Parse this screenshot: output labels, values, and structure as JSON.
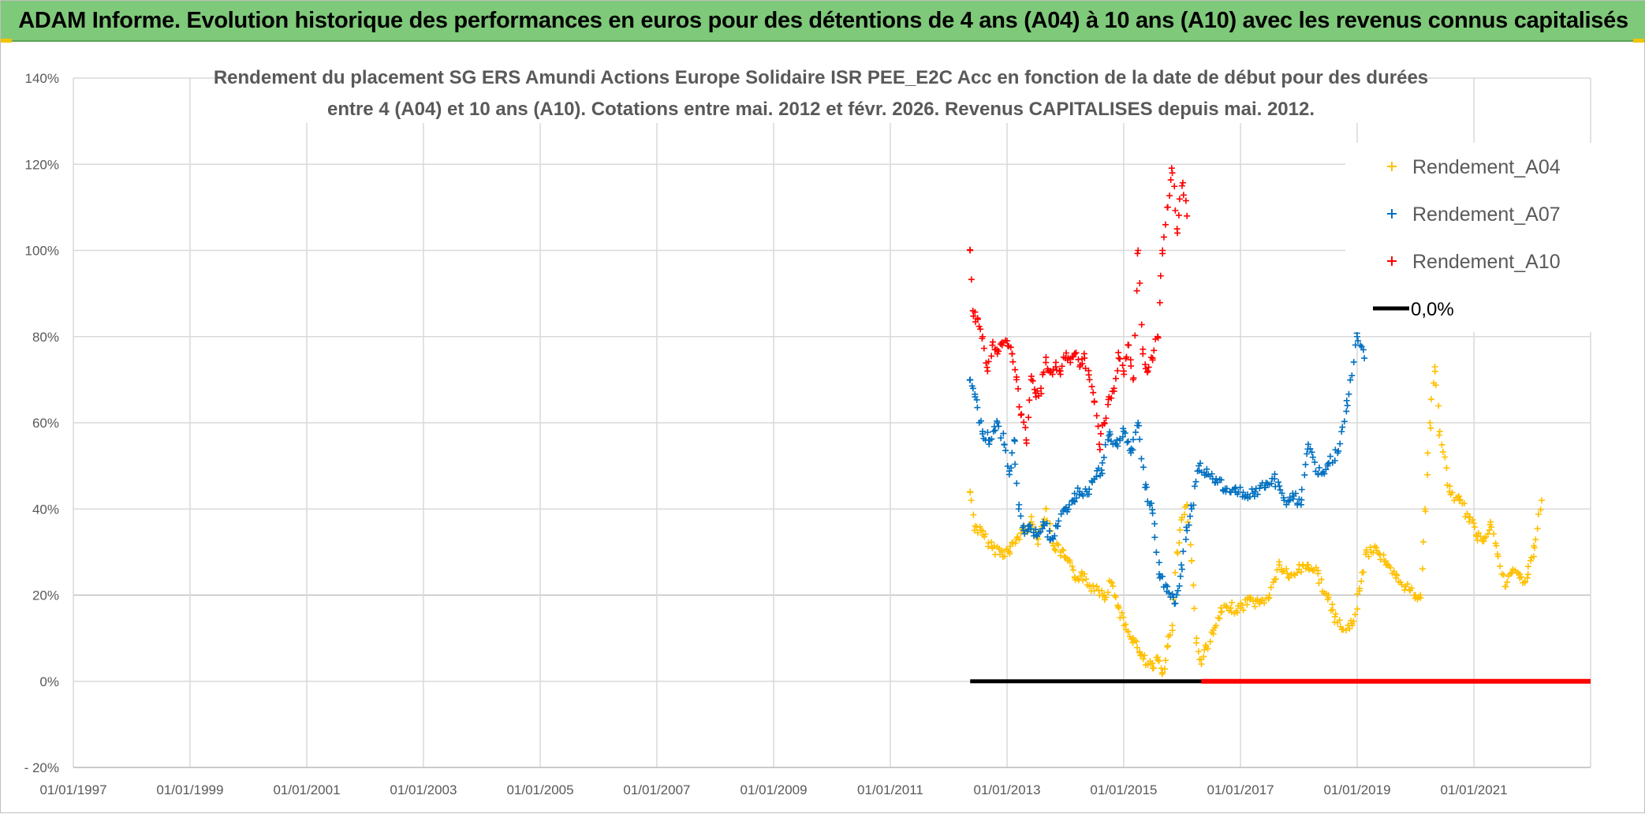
{
  "banner_title": "ADAM Informe. Evolution historique des performances en euros pour des détentions de 4 ans (A04) à 10 ans (A10) avec les revenus connus capitalisés",
  "colors": {
    "banner": "#7fc97a",
    "A04": "#ffc000",
    "A07": "#0070c0",
    "A10": "#ff0000",
    "zero": "#000000"
  },
  "chart_data": {
    "type": "scatter",
    "title_line1": "Rendement du placement SG ERS Amundi Actions Europe Solidaire ISR PEE_E2C Acc en fonction de la date de début pour des durées",
    "title_line2": "entre 4 (A04) et 10 ans (A10). Cotations entre mai. 2012 et févr. 2026. Revenus CAPITALISES depuis mai. 2012.",
    "xlim": [
      "1997-01-01",
      "2023-01-01"
    ],
    "ylim": [
      -20,
      140
    ],
    "x_tick_labels": [
      "01/01/1997",
      "01/01/1999",
      "01/01/2001",
      "01/01/2003",
      "01/01/2005",
      "01/01/2007",
      "01/01/2009",
      "01/01/2011",
      "01/01/2013",
      "01/01/2015",
      "01/01/2017",
      "01/01/2019",
      "01/01/2021"
    ],
    "y_tick_labels": [
      "- 20%",
      "0%",
      "20%",
      "40%",
      "60%",
      "80%",
      "100%",
      "120%",
      "140%"
    ],
    "y_tick_values": [
      -20,
      0,
      20,
      40,
      60,
      80,
      100,
      120,
      140
    ],
    "grid": true,
    "legend_position": "top-right",
    "series": [
      {
        "name": "Rendement_A04",
        "marker": "+",
        "color": "#ffc000",
        "x": [
          "2012-05-15",
          "2012-06-15",
          "2012-08-01",
          "2012-10-01",
          "2012-12-01",
          "2013-01-15",
          "2013-03-01",
          "2013-04-15",
          "2013-06-01",
          "2013-07-15",
          "2013-09-01",
          "2013-10-15",
          "2013-12-01",
          "2014-01-15",
          "2014-03-01",
          "2014-04-15",
          "2014-06-01",
          "2014-07-15",
          "2014-09-01",
          "2014-10-15",
          "2014-12-01",
          "2015-01-15",
          "2015-03-01",
          "2015-04-15",
          "2015-06-01",
          "2015-07-01",
          "2015-08-01",
          "2015-09-01",
          "2015-10-01",
          "2015-11-01",
          "2015-12-01",
          "2016-01-01",
          "2016-02-01",
          "2016-03-01",
          "2016-04-01",
          "2016-05-01",
          "2016-06-01",
          "2016-07-15",
          "2016-09-01",
          "2016-11-01",
          "2017-01-01",
          "2017-03-01",
          "2017-05-01",
          "2017-07-01",
          "2017-09-01",
          "2017-11-01",
          "2018-01-01",
          "2018-03-01",
          "2018-05-01",
          "2018-07-01",
          "2018-08-15",
          "2018-10-01",
          "2018-12-01",
          "2019-01-15",
          "2019-03-01",
          "2019-05-01",
          "2019-07-01",
          "2019-09-01",
          "2019-11-01",
          "2020-01-01",
          "2020-02-01",
          "2020-03-01",
          "2020-04-01",
          "2020-05-01",
          "2020-06-01",
          "2020-08-01",
          "2020-10-01",
          "2020-12-01",
          "2021-01-15",
          "2021-03-01",
          "2021-04-15",
          "2021-06-01",
          "2021-07-15",
          "2021-09-01",
          "2021-10-15",
          "2021-12-01",
          "2022-01-15",
          "2022-03-01"
        ],
        "y": [
          44,
          36,
          34,
          31,
          30,
          30,
          33,
          35,
          37,
          33,
          40,
          32,
          30,
          28,
          24,
          25,
          22,
          22,
          20,
          23,
          17,
          12,
          10,
          6,
          4,
          3,
          5,
          2,
          8,
          13,
          30,
          38,
          41,
          28,
          10,
          4,
          8,
          11,
          16,
          17,
          17,
          19,
          18,
          20,
          27,
          24,
          26,
          27,
          25,
          19,
          15,
          12,
          13,
          21,
          30,
          31,
          27,
          24,
          22,
          20,
          20,
          40,
          60,
          73,
          58,
          44,
          42,
          38,
          34,
          33,
          37,
          29,
          22,
          26,
          24,
          24,
          31,
          42
        ]
      },
      {
        "name": "Rendement_A07",
        "marker": "+",
        "color": "#0070c0",
        "x": [
          "2012-05-15",
          "2012-06-15",
          "2012-08-01",
          "2012-09-15",
          "2012-11-01",
          "2012-12-15",
          "2013-01-15",
          "2013-02-15",
          "2013-03-15",
          "2013-04-15",
          "2013-05-15",
          "2013-07-01",
          "2013-08-15",
          "2013-10-01",
          "2013-11-15",
          "2014-01-01",
          "2014-02-15",
          "2014-04-01",
          "2014-05-15",
          "2014-07-01",
          "2014-08-15",
          "2014-10-01",
          "2014-11-15",
          "2015-01-01",
          "2015-02-15",
          "2015-04-01",
          "2015-05-15",
          "2015-07-01",
          "2015-08-15",
          "2015-10-01",
          "2015-11-15",
          "2016-01-01",
          "2016-02-01",
          "2016-03-01",
          "2016-04-15",
          "2016-06-01",
          "2016-08-01",
          "2016-10-01",
          "2016-12-01",
          "2017-02-01",
          "2017-04-01",
          "2017-06-01",
          "2017-08-01",
          "2017-10-01",
          "2017-12-01",
          "2018-01-15",
          "2018-03-01",
          "2018-05-01",
          "2018-07-01",
          "2018-09-01",
          "2018-11-01",
          "2019-01-01",
          "2019-02-15"
        ],
        "y": [
          70,
          66,
          58,
          56,
          60,
          55,
          48,
          56,
          40,
          35,
          36,
          34,
          37,
          33,
          36,
          40,
          42,
          44,
          44,
          47,
          49,
          57,
          55,
          58,
          53,
          60,
          45,
          39,
          24,
          22,
          18,
          26,
          35,
          40,
          50,
          48,
          47,
          44,
          45,
          43,
          44,
          45,
          47,
          42,
          43,
          41,
          55,
          48,
          50,
          53,
          64,
          80,
          75
        ]
      },
      {
        "name": "Rendement_A10",
        "marker": "+",
        "color": "#ff0000",
        "x": [
          "2012-05-15",
          "2012-06-01",
          "2012-07-01",
          "2012-08-01",
          "2012-09-01",
          "2012-10-01",
          "2012-11-01",
          "2012-12-01",
          "2013-01-01",
          "2013-02-01",
          "2013-03-01",
          "2013-04-01",
          "2013-05-01",
          "2013-06-01",
          "2013-07-01",
          "2013-08-01",
          "2013-09-01",
          "2013-10-01",
          "2013-11-01",
          "2013-12-01",
          "2014-01-01",
          "2014-02-01",
          "2014-03-01",
          "2014-04-01",
          "2014-05-01",
          "2014-06-01",
          "2014-07-01",
          "2014-08-01",
          "2014-09-01",
          "2014-10-01",
          "2014-11-01",
          "2014-12-01",
          "2015-01-01",
          "2015-02-01",
          "2015-03-01",
          "2015-04-01",
          "2015-05-01",
          "2015-06-01",
          "2015-07-01",
          "2015-08-01",
          "2015-09-01",
          "2015-10-01",
          "2015-11-01",
          "2015-12-01",
          "2016-01-01",
          "2016-02-01"
        ],
        "y": [
          100,
          86,
          84,
          80,
          72,
          78,
          76,
          78,
          79,
          76,
          70,
          62,
          56,
          70,
          66,
          68,
          74,
          72,
          73,
          72,
          75,
          74,
          76,
          73,
          75,
          70,
          65,
          55,
          60,
          66,
          68,
          75,
          72,
          78,
          70,
          100,
          76,
          72,
          75,
          80,
          100,
          110,
          118,
          105,
          115,
          108
        ]
      }
    ],
    "legend": [
      {
        "label": "Rendement_A04",
        "marker": "+",
        "color": "#ffc000"
      },
      {
        "label": "Rendement_A07",
        "marker": "+",
        "color": "#0070c0"
      },
      {
        "label": "Rendement_A10",
        "marker": "+",
        "color": "#ff0000"
      },
      {
        "label": "0,0%",
        "marker": "line",
        "color": "#000000"
      }
    ],
    "zero_line": {
      "label": "0,0%",
      "y": 0,
      "black_from": "2012-05-15",
      "black_to": "2016-05-01",
      "red_from": "2016-05-01",
      "red_to": "2023-01-01"
    }
  }
}
